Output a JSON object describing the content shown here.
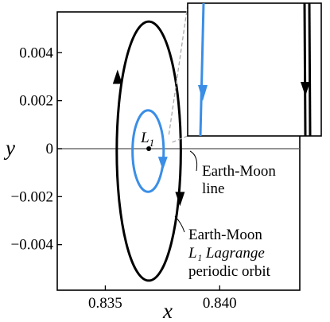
{
  "chart_data": {
    "type": "line",
    "xlabel": "x",
    "ylabel": "y",
    "xlim": [
      0.8329,
      0.8435
    ],
    "ylim": [
      -0.0059,
      0.0057
    ],
    "x_ticks": [
      0.835,
      0.84
    ],
    "x_tick_labels": [
      "0.835",
      "0.840"
    ],
    "y_ticks": [
      0.004,
      0.002,
      0,
      -0.002,
      -0.004
    ],
    "y_tick_labels": [
      "0.004",
      "0.002",
      "0",
      "−0.002",
      "−0.004"
    ],
    "grid": false,
    "horizontal_line_y": 0,
    "point": {
      "x": 0.8369,
      "y": 0.0,
      "label_main": "L",
      "label_sub": "1"
    },
    "series": [
      {
        "color": "#000000",
        "center_x": 0.8369,
        "center_y": -0.0001,
        "semi_axis_x": 0.0014,
        "semi_axis_y": 0.0054
      },
      {
        "color": "#3a8ee6",
        "center_x": 0.83687,
        "center_y": -0.0001,
        "semi_axis_x": 0.00068,
        "semi_axis_y": 0.0017
      }
    ],
    "annotations": [
      {
        "lines": [
          "Earth-Moon",
          "line"
        ]
      },
      {
        "lines": [
          "Earth-Moon",
          "L₁ Lagrange",
          "periodic orbit"
        ]
      }
    ],
    "inset": {
      "type": "zoom"
    }
  },
  "colors": {
    "blue": "#3a8ee6",
    "black": "#000000",
    "connector": "#aaaaaa"
  }
}
